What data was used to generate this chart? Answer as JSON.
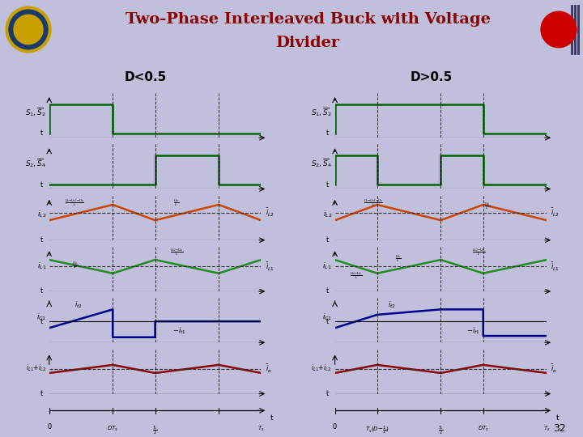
{
  "title_line1": "Two-Phase Interleaved Buck with Voltage",
  "title_line2": "Divider",
  "title_color": "#8B0000",
  "bg_color": "#C0C0DC",
  "header_bg": "#B8B8D8",
  "page_num": "32",
  "left_label": "D<0.5",
  "right_label": "D>0.5",
  "col_s1_color": "#006400",
  "col_il2_color": "#CC4400",
  "col_il1_color": "#228B22",
  "col_ic1_color": "#00008B",
  "col_sum_color": "#8B0000",
  "dashed_color": "#333333",
  "D_less": 0.3,
  "D_more": 0.7,
  "Ts": 1.0
}
